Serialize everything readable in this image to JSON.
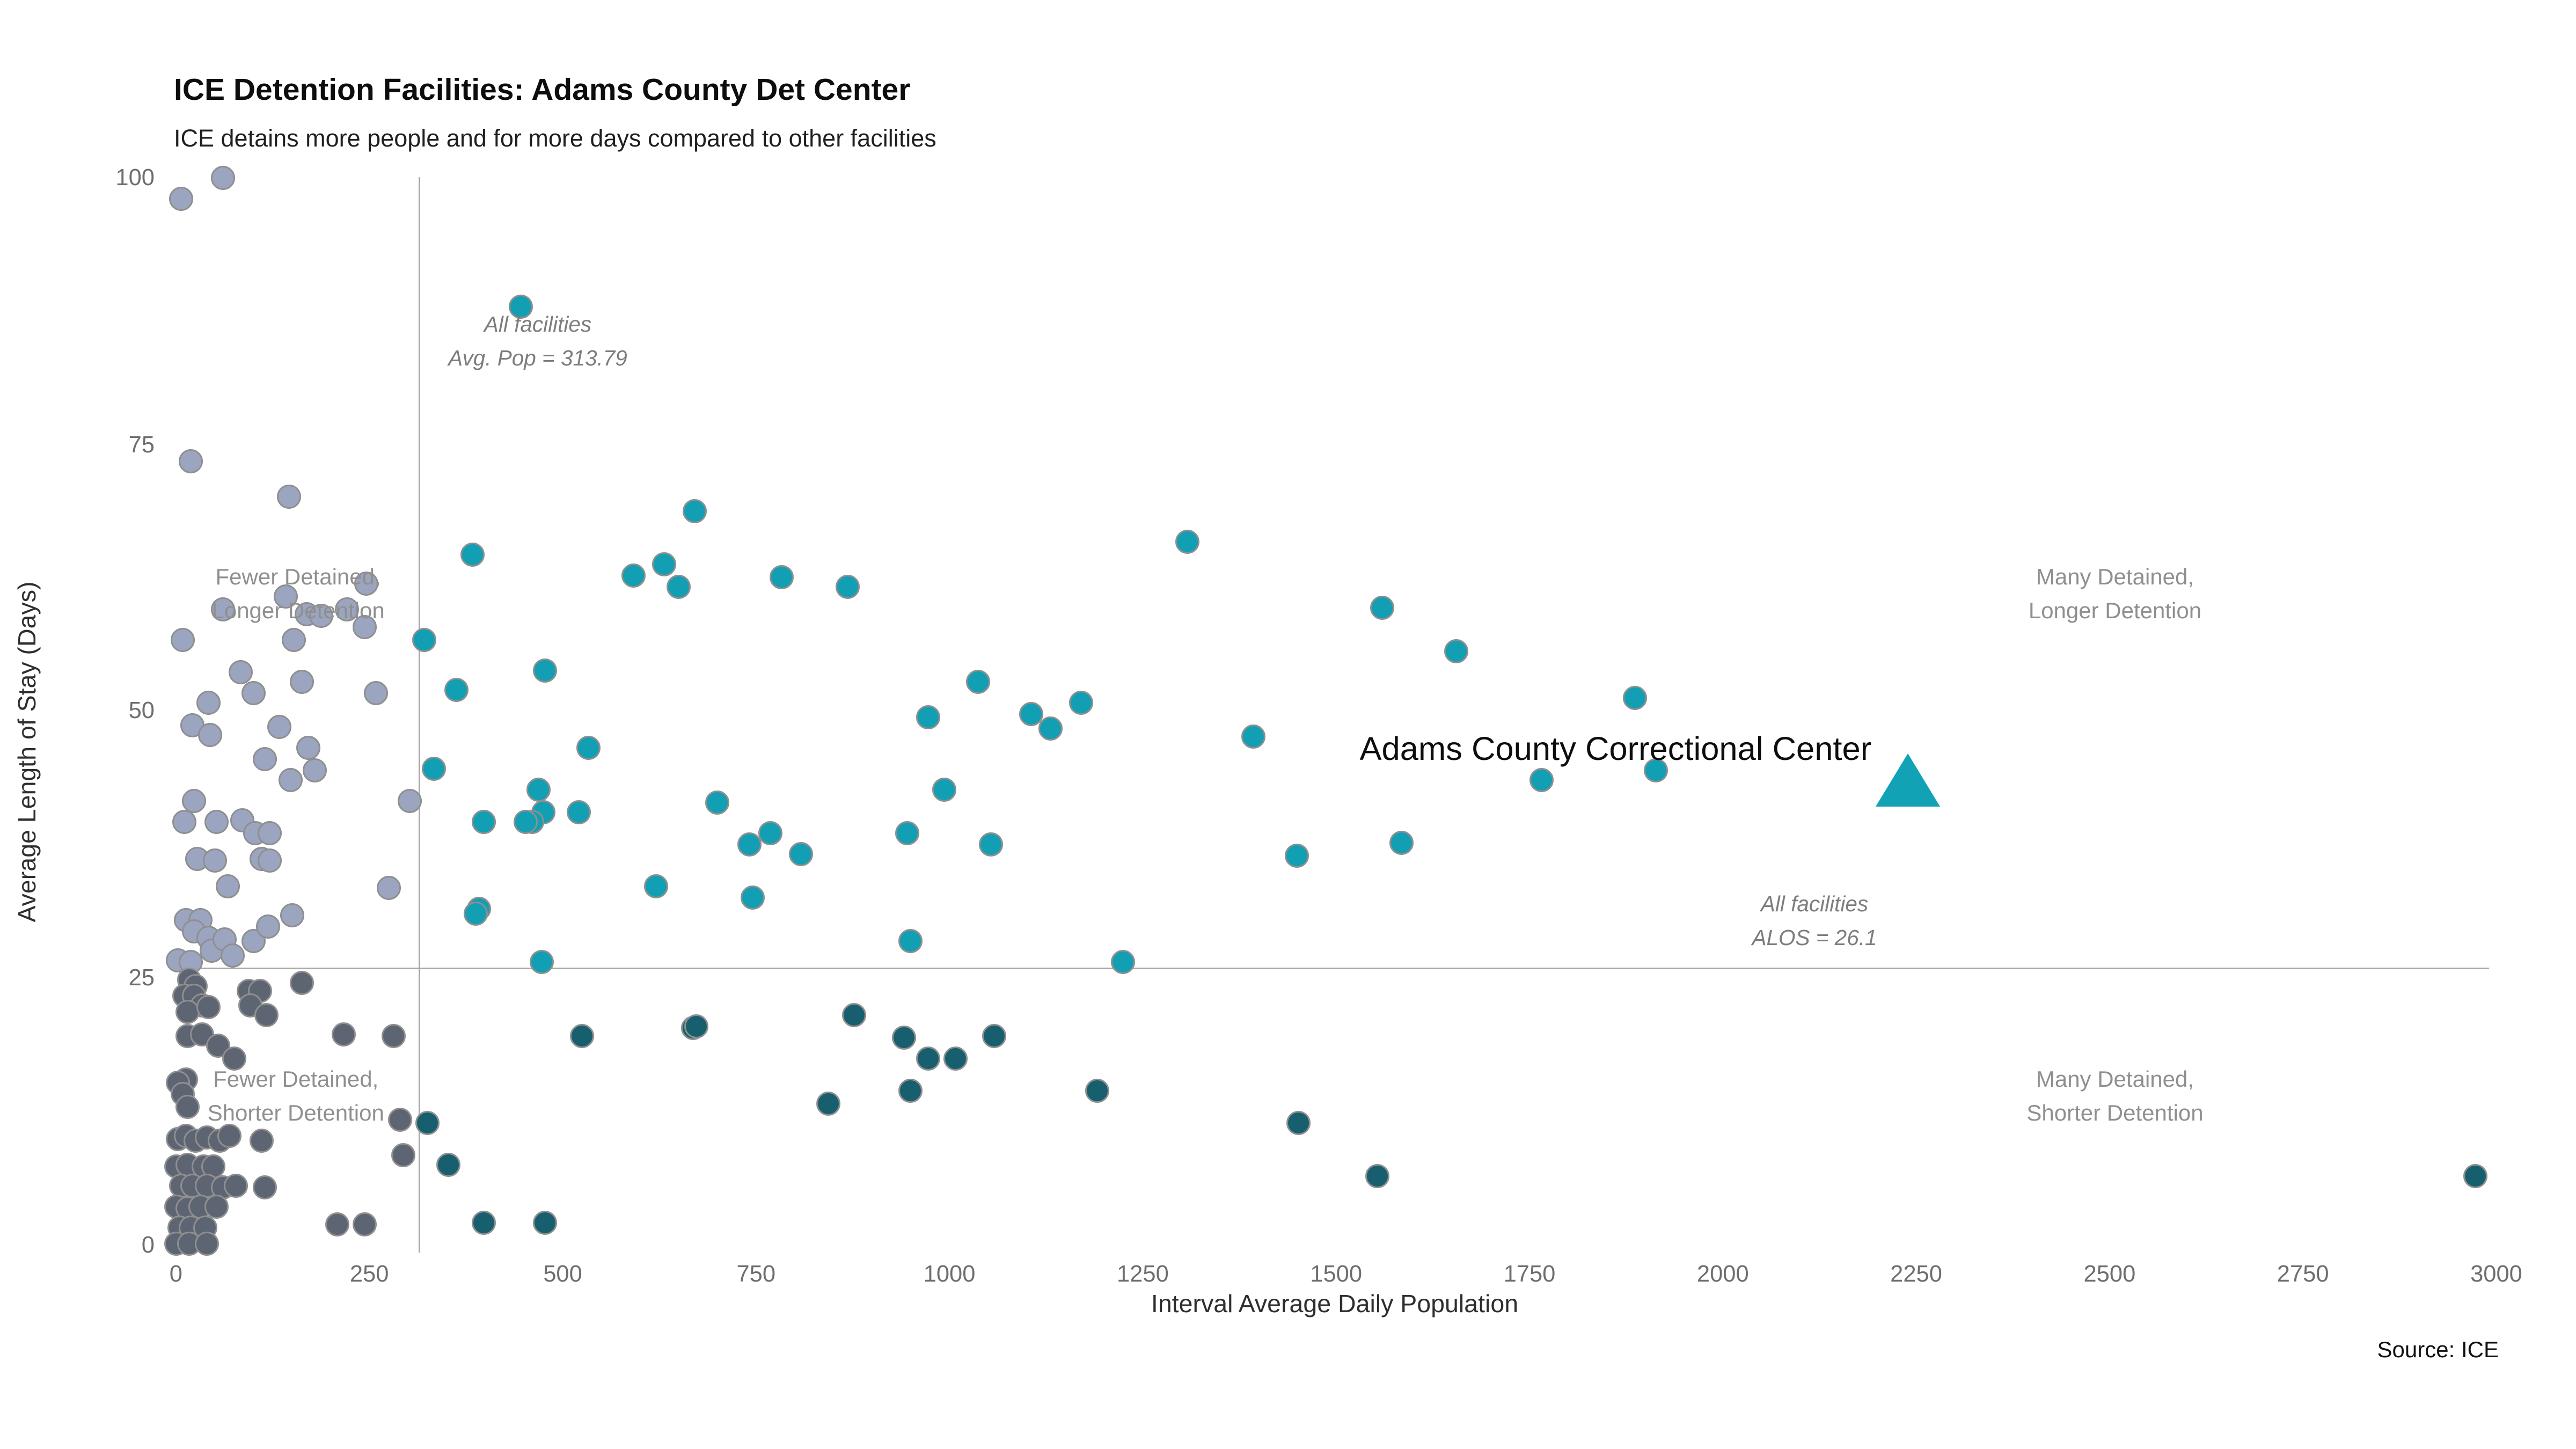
{
  "colors": {
    "gray_longer": "#9ba5c0",
    "gray_shorter": "#5d6472",
    "teal_longer": "#129fb4",
    "teal_shorter": "#175f6e",
    "point_stroke": "#8f8f8f",
    "refline": "#a9a9a9",
    "highlight": "#12a2b6"
  },
  "chart_data": {
    "type": "scatter",
    "title": "ICE Detention Facilities: Adams County Det Center",
    "subtitle": "ICE detains more people and for more days compared to other facilities",
    "xlabel": "Interval Average Daily Population",
    "ylabel": "Average Length of Stay (Days)",
    "source": "Source: ICE",
    "xlim": [
      0,
      3000
    ],
    "ylim": [
      0,
      100
    ],
    "x_ticks": [
      0,
      250,
      500,
      750,
      1000,
      1250,
      1500,
      1750,
      2000,
      2250,
      2500,
      2750,
      3000
    ],
    "y_ticks": [
      0,
      25,
      50,
      75,
      100
    ],
    "grid": false,
    "legend": "none",
    "reference_lines": {
      "vertical": {
        "value": 313.79,
        "label_line1": "All facilities",
        "label_line2": "Avg. Pop = 313.79"
      },
      "horizontal": {
        "value": 26.1,
        "label_line1": "All facilities",
        "label_line2": "ALOS = 26.1"
      }
    },
    "quadrant_labels": [
      {
        "id": "fewer-longer",
        "line1": "Fewer Detained,",
        "line2": "Longer Detention",
        "x": 158,
        "y": 61
      },
      {
        "id": "many-longer",
        "line1": "Many Detained,",
        "line2": "Longer Detention",
        "x": 2507,
        "y": 61
      },
      {
        "id": "fewer-shorter",
        "line1": "Fewer Detained,",
        "line2": "Shorter Detention",
        "x": 155,
        "y": 14
      },
      {
        "id": "many-shorter",
        "line1": "Many Detained,",
        "line2": "Shorter Detention",
        "x": 2507,
        "y": 14
      }
    ],
    "highlight": {
      "label": "Adams County Correctional Center",
      "x": 2240,
      "y": 43.5
    },
    "series": [
      {
        "name": "fewer-longer-gray",
        "color_key": "gray_longer",
        "points": [
          [
            60,
            100
          ],
          [
            6,
            98
          ],
          [
            19,
            73.5
          ],
          [
            146,
            70.2
          ],
          [
            61,
            59.7
          ],
          [
            143,
            60.8
          ],
          [
            247,
            62.1
          ],
          [
            221,
            59.7
          ],
          [
            169,
            59.1
          ],
          [
            188,
            59
          ],
          [
            245,
            57.9
          ],
          [
            8,
            56.8
          ],
          [
            153,
            56.7
          ],
          [
            83,
            53.8
          ],
          [
            163,
            52.9
          ],
          [
            101,
            51.8
          ],
          [
            42,
            50.9
          ],
          [
            258,
            51.8
          ],
          [
            21,
            48.7
          ],
          [
            44,
            47.8
          ],
          [
            133,
            48.6
          ],
          [
            171,
            46.7
          ],
          [
            115,
            45.6
          ],
          [
            179,
            44.6
          ],
          [
            149,
            43.6
          ],
          [
            24,
            41.7
          ],
          [
            303,
            41.7
          ],
          [
            10,
            39.7
          ],
          [
            53,
            39.7
          ],
          [
            86,
            39.9
          ],
          [
            103,
            38.7
          ],
          [
            121,
            38.6
          ],
          [
            27,
            36.2
          ],
          [
            50,
            36.1
          ],
          [
            111,
            36.2
          ],
          [
            121,
            36.1
          ],
          [
            67,
            33.7
          ],
          [
            276,
            33.6
          ],
          [
            12,
            30.6
          ],
          [
            31,
            30.6
          ],
          [
            23,
            29.5
          ],
          [
            43,
            28.8
          ],
          [
            46,
            27.7
          ],
          [
            62,
            28.7
          ],
          [
            74,
            27.2
          ],
          [
            101,
            28.6
          ],
          [
            119,
            29.9
          ],
          [
            151,
            31
          ],
          [
            3,
            26.7
          ],
          [
            19,
            26.6
          ]
        ]
      },
      {
        "name": "fewer-shorter-gray",
        "color_key": "gray_shorter",
        "points": [
          [
            17,
            24.9
          ],
          [
            26,
            24.4
          ],
          [
            11,
            23.5
          ],
          [
            23,
            23.4
          ],
          [
            34,
            22.6
          ],
          [
            94,
            23.9
          ],
          [
            108,
            23.9
          ],
          [
            96,
            22.6
          ],
          [
            116,
            21.6
          ],
          [
            162,
            24.6
          ],
          [
            15,
            21.9
          ],
          [
            42,
            22.4
          ],
          [
            14,
            19.6
          ],
          [
            34,
            19.8
          ],
          [
            54,
            18.8
          ],
          [
            76,
            17.6
          ],
          [
            217,
            19.8
          ],
          [
            282,
            19.7
          ],
          [
            294,
            8.5
          ],
          [
            12,
            15.6
          ],
          [
            2,
            15.3
          ],
          [
            9,
            14.2
          ],
          [
            15,
            13.1
          ],
          [
            290,
            11.8
          ],
          [
            2,
            10
          ],
          [
            12,
            10.4
          ],
          [
            25,
            9.8
          ],
          [
            40,
            10.2
          ],
          [
            57,
            9.9
          ],
          [
            69,
            10.3
          ],
          [
            111,
            9.8
          ],
          [
            1,
            7.5
          ],
          [
            15,
            7.6
          ],
          [
            35,
            7.4
          ],
          [
            48,
            7.5
          ],
          [
            6,
            5.7
          ],
          [
            21,
            5.6
          ],
          [
            41,
            5.7
          ],
          [
            60,
            5.5
          ],
          [
            77,
            5.7
          ],
          [
            114,
            5.5
          ],
          [
            0,
            3.7
          ],
          [
            16,
            3.6
          ],
          [
            32,
            3.7
          ],
          [
            53,
            3.7
          ],
          [
            4,
            1.7
          ],
          [
            20,
            1.7
          ],
          [
            37,
            1.7
          ],
          [
            208,
            2
          ],
          [
            244,
            2
          ],
          [
            1,
            0.3
          ],
          [
            17,
            0.2
          ],
          [
            40,
            0.3
          ]
        ]
      },
      {
        "name": "many-longer-teal",
        "color_key": "teal_longer",
        "points": [
          [
            445,
            88
          ],
          [
            670,
            68.8
          ],
          [
            383,
            64.8
          ],
          [
            591,
            62.8
          ],
          [
            632,
            63.8
          ],
          [
            650,
            61.8
          ],
          [
            783,
            62.7
          ],
          [
            868,
            61.8
          ],
          [
            1307,
            66
          ],
          [
            321,
            56.8
          ],
          [
            362,
            52.1
          ],
          [
            477,
            53.9
          ],
          [
            1037,
            52.8
          ],
          [
            534,
            46.7
          ],
          [
            469,
            42.7
          ],
          [
            476,
            40.6
          ],
          [
            461,
            39.7
          ],
          [
            520,
            40.6
          ],
          [
            398,
            39.7
          ],
          [
            700,
            41.6
          ],
          [
            620,
            33.7
          ],
          [
            391,
            31.6
          ],
          [
            472,
            26.6
          ],
          [
            387,
            31.2
          ],
          [
            334,
            44.7
          ],
          [
            399,
            39.8
          ],
          [
            452,
            39.7
          ],
          [
            972,
            49.6
          ],
          [
            1106,
            49.8
          ],
          [
            1130,
            48.5
          ],
          [
            1170,
            50.9
          ],
          [
            994,
            42.8
          ],
          [
            742,
            37.6
          ],
          [
            768,
            38.6
          ],
          [
            808,
            36.7
          ],
          [
            946,
            38.6
          ],
          [
            1053,
            37.6
          ],
          [
            746,
            32.7
          ],
          [
            950,
            28.6
          ],
          [
            1225,
            26.6
          ],
          [
            1559,
            59.8
          ],
          [
            1656,
            55.7
          ],
          [
            1887,
            51.4
          ],
          [
            1393,
            47.7
          ],
          [
            1766,
            43.7
          ],
          [
            1914,
            44.6
          ],
          [
            1449,
            36.6
          ],
          [
            1585,
            37.7
          ]
        ]
      },
      {
        "name": "many-shorter-darkteal",
        "color_key": "teal_shorter",
        "points": [
          [
            326,
            11.5
          ],
          [
            352,
            7.6
          ],
          [
            397,
            2.2
          ],
          [
            477,
            2.2
          ],
          [
            526,
            19.6
          ],
          [
            668,
            20.5
          ],
          [
            672,
            20.6
          ],
          [
            876,
            21.6
          ],
          [
            941,
            19.5
          ],
          [
            973,
            17.6
          ],
          [
            1007,
            17.6
          ],
          [
            1058,
            19.6
          ],
          [
            949,
            14.6
          ],
          [
            844,
            13.4
          ],
          [
            1191,
            14.6
          ],
          [
            1451,
            11.6
          ],
          [
            1554,
            6.5
          ],
          [
            2972,
            6.5
          ]
        ]
      }
    ]
  }
}
